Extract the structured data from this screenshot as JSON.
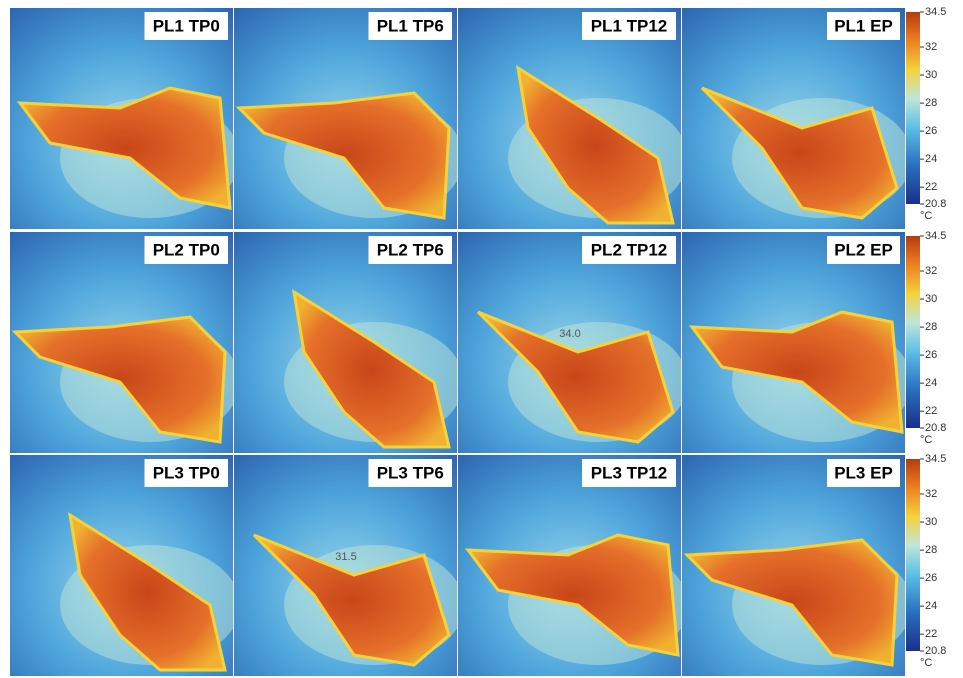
{
  "rows": [
    {
      "panels": [
        {
          "label": "PL1 TP0"
        },
        {
          "label": "PL1 TP6"
        },
        {
          "label": "PL1 TP12"
        },
        {
          "label": "PL1 EP"
        }
      ]
    },
    {
      "panels": [
        {
          "label": "PL2 TP0"
        },
        {
          "label": "PL2 TP6"
        },
        {
          "label": "PL2 TP12",
          "reading": "34.0"
        },
        {
          "label": "PL2 EP"
        }
      ]
    },
    {
      "panels": [
        {
          "label": "PL3 TP0"
        },
        {
          "label": "PL3 TP6",
          "reading": "31.5"
        },
        {
          "label": "PL3 TP12"
        },
        {
          "label": "PL3 EP"
        }
      ]
    }
  ],
  "colorbar": {
    "ticks": [
      34.5,
      32,
      30,
      28,
      26,
      24,
      22,
      20.8
    ],
    "unit": "°C"
  }
}
